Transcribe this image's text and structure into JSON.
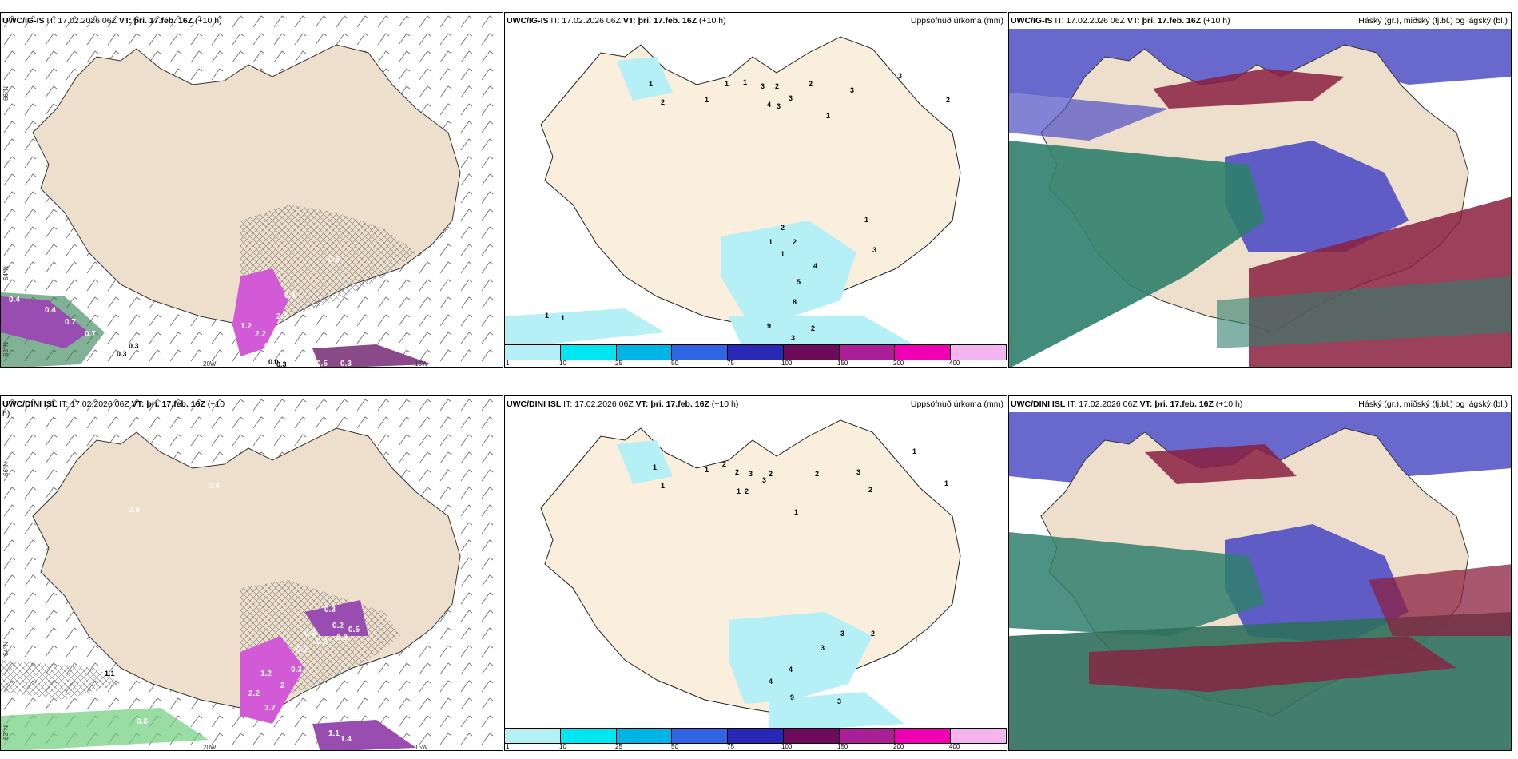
{
  "colors": {
    "land": "#eedfcc",
    "precip_light": "#b4f0f5",
    "purple": "#9a4db0",
    "magenta": "#d25ad7",
    "green_cloud": "#2f7f6d",
    "blue_cloud": "#4f4fc4",
    "red_cloud": "#8a2040",
    "hatch": "#888888"
  },
  "rows": [
    {
      "model": "UWC/IG-IS",
      "it_label": "IT:",
      "it_value": "17.02.2026 06Z",
      "vt_label": "VT:",
      "vt_value": "þri. 17.feb. 16Z",
      "lead": "(+10 h)",
      "panel1": {
        "lat_labels": [
          "66°N",
          "64°N",
          "63°N"
        ],
        "lon_labels": [
          "20W",
          "15W"
        ],
        "values": [
          "0.4",
          "0.4",
          "0.7",
          "0.7",
          "0.3",
          "1.2",
          "2.0",
          "0.3",
          "2.2",
          "0.6",
          "0.8",
          "0.5",
          "0.3",
          "0.3",
          "0.0",
          "0.3"
        ]
      },
      "panel2": {
        "title_right": "Uppsöfnuð úrkoma (mm)",
        "values": [
          "1",
          "2",
          "1",
          "1",
          "1",
          "3",
          "2",
          "3",
          "2",
          "3",
          "4",
          "3",
          "1",
          "3",
          "2",
          "2",
          "1",
          "2",
          "1",
          "1",
          "4",
          "3",
          "5",
          "8",
          "9",
          "2",
          "3",
          "1",
          "1"
        ]
      },
      "panel3": {
        "title_right": "Háský (gr.), miðský (fj.bl.) og lágský (bl.)"
      }
    },
    {
      "model": "UWC/DINI ISL",
      "it_label": "IT:",
      "it_value": "17.02.2026 06Z",
      "vt_label": "VT:",
      "vt_value": "þri. 17.feb. 16Z",
      "lead": "(+10 h)",
      "panel1": {
        "lat_labels": [
          "66°N",
          "64°N",
          "63°N"
        ],
        "lon_labels": [
          "20W",
          "15W"
        ],
        "values": [
          "0.8",
          "0.4",
          "1.1",
          "0.3",
          "0.2",
          "0.3",
          "0.3",
          "0.3",
          "0.5",
          "0.2",
          "1.2",
          "2",
          "0.3",
          "2.2",
          "3.7",
          "0.2",
          "0.6",
          "1.1",
          "1.4"
        ]
      },
      "panel2": {
        "title_right": "Uppsöfnuð úrkoma (mm)",
        "values": [
          "1",
          "1",
          "1",
          "2",
          "2",
          "3",
          "2",
          "1",
          "2",
          "3",
          "1",
          "1",
          "2",
          "3",
          "1",
          "2",
          "3",
          "2",
          "3",
          "4",
          "4",
          "9",
          "3",
          "1"
        ]
      },
      "panel3": {
        "title_right": "Háský (gr.), miðský (fj.bl.) og lágský (bl.)"
      }
    }
  ],
  "colorbar": {
    "labels": [
      "1",
      "10",
      "25",
      "50",
      "75",
      "100",
      "150",
      "200",
      "400"
    ],
    "colors": [
      "#b4f0f5",
      "#00e6f0",
      "#00b4e6",
      "#3264e6",
      "#2828b4",
      "#6e0a5a",
      "#aa1e96",
      "#f000b4",
      "#f5b4f0"
    ]
  }
}
